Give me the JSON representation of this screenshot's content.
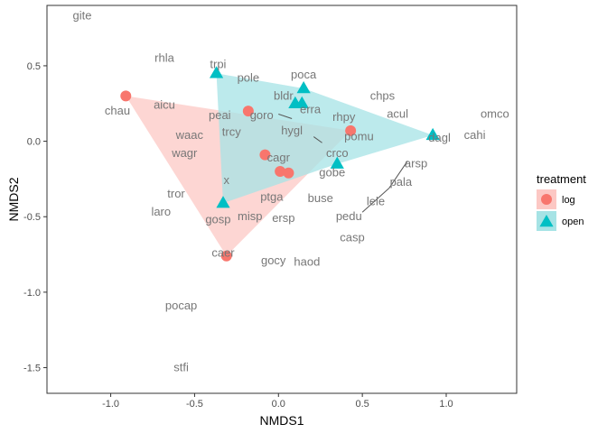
{
  "chart_data": {
    "type": "scatter",
    "xlabel": "NMDS1",
    "ylabel": "NMDS2",
    "xlim": [
      -1.38,
      1.42
    ],
    "ylim": [
      -1.67,
      0.9
    ],
    "x_ticks": [
      -1.0,
      -0.5,
      0.0,
      0.5,
      1.0
    ],
    "x_tick_labels": [
      "-1.0",
      "-0.5",
      "0.0",
      "0.5",
      "1.0"
    ],
    "y_ticks": [
      -1.5,
      -1.0,
      -0.5,
      0.0,
      0.5
    ],
    "y_tick_labels": [
      "-1.5",
      "-1.0",
      "-0.5",
      "0.0",
      "0.5"
    ],
    "grid": false,
    "legend": {
      "title": "treatment",
      "position": "right",
      "entries": [
        {
          "name": "log",
          "color": "#F8766D",
          "shape": "circle"
        },
        {
          "name": "open",
          "color": "#00BFC4",
          "shape": "triangle"
        }
      ]
    },
    "series": [
      {
        "name": "log",
        "color": "#F8766D",
        "fill": "#FCC8C4",
        "shape": "circle",
        "points": [
          {
            "x": -0.91,
            "y": 0.3
          },
          {
            "x": -0.18,
            "y": 0.2
          },
          {
            "x": 0.43,
            "y": 0.07
          },
          {
            "x": -0.08,
            "y": -0.09
          },
          {
            "x": 0.01,
            "y": -0.2
          },
          {
            "x": 0.06,
            "y": -0.21
          },
          {
            "x": -0.31,
            "y": -0.76
          }
        ],
        "hull": [
          {
            "x": -0.91,
            "y": 0.3
          },
          {
            "x": 0.43,
            "y": 0.07
          },
          {
            "x": -0.31,
            "y": -0.76
          }
        ]
      },
      {
        "name": "open",
        "color": "#00BFC4",
        "fill": "#A6E3E5",
        "shape": "triangle",
        "points": [
          {
            "x": -0.37,
            "y": 0.45
          },
          {
            "x": 0.15,
            "y": 0.35
          },
          {
            "x": 0.1,
            "y": 0.25
          },
          {
            "x": 0.14,
            "y": 0.25
          },
          {
            "x": 0.92,
            "y": 0.04
          },
          {
            "x": 0.35,
            "y": -0.15
          },
          {
            "x": -0.33,
            "y": -0.41
          }
        ],
        "hull": [
          {
            "x": -0.37,
            "y": 0.45
          },
          {
            "x": 0.15,
            "y": 0.35
          },
          {
            "x": 0.92,
            "y": 0.04
          },
          {
            "x": 0.35,
            "y": -0.15
          },
          {
            "x": -0.33,
            "y": -0.41
          }
        ]
      }
    ],
    "species_labels": [
      {
        "text": "gite",
        "x": -1.17,
        "y": 0.83
      },
      {
        "text": "rhla",
        "x": -0.68,
        "y": 0.55
      },
      {
        "text": "trpi",
        "x": -0.36,
        "y": 0.51
      },
      {
        "text": "pole",
        "x": -0.18,
        "y": 0.42
      },
      {
        "text": "poca",
        "x": 0.15,
        "y": 0.44
      },
      {
        "text": "bldr",
        "x": 0.03,
        "y": 0.3
      },
      {
        "text": "chps",
        "x": 0.62,
        "y": 0.3
      },
      {
        "text": "erra",
        "x": 0.19,
        "y": 0.21
      },
      {
        "text": "acul",
        "x": 0.71,
        "y": 0.18
      },
      {
        "text": "omco",
        "x": 1.29,
        "y": 0.18
      },
      {
        "text": "chau",
        "x": -0.96,
        "y": 0.2
      },
      {
        "text": "aicu",
        "x": -0.68,
        "y": 0.24
      },
      {
        "text": "peai",
        "x": -0.35,
        "y": 0.17
      },
      {
        "text": "goro",
        "x": -0.1,
        "y": 0.17
      },
      {
        "text": "rhpy",
        "x": 0.39,
        "y": 0.16
      },
      {
        "text": "waac",
        "x": -0.53,
        "y": 0.04
      },
      {
        "text": "trcy",
        "x": -0.28,
        "y": 0.06
      },
      {
        "text": "hygl",
        "x": 0.08,
        "y": 0.07
      },
      {
        "text": "pomu",
        "x": 0.48,
        "y": 0.03
      },
      {
        "text": "cahi",
        "x": 1.17,
        "y": 0.04
      },
      {
        "text": "dagl",
        "x": 0.96,
        "y": 0.02
      },
      {
        "text": "wagr",
        "x": -0.56,
        "y": -0.08
      },
      {
        "text": "cagr",
        "x": 0.0,
        "y": -0.11
      },
      {
        "text": "crco",
        "x": 0.35,
        "y": -0.08
      },
      {
        "text": "arsp",
        "x": 0.82,
        "y": -0.15
      },
      {
        "text": "gobe",
        "x": 0.32,
        "y": -0.21
      },
      {
        "text": "x",
        "x": -0.31,
        "y": -0.26
      },
      {
        "text": "pala",
        "x": 0.73,
        "y": -0.27
      },
      {
        "text": "tror",
        "x": -0.61,
        "y": -0.35
      },
      {
        "text": "ptga",
        "x": -0.04,
        "y": -0.37
      },
      {
        "text": "buse",
        "x": 0.25,
        "y": -0.38
      },
      {
        "text": "lele",
        "x": 0.58,
        "y": -0.4
      },
      {
        "text": "laro",
        "x": -0.7,
        "y": -0.47
      },
      {
        "text": "gosp",
        "x": -0.36,
        "y": -0.52
      },
      {
        "text": "misp",
        "x": -0.17,
        "y": -0.5
      },
      {
        "text": "ersp",
        "x": 0.03,
        "y": -0.51
      },
      {
        "text": "pedu",
        "x": 0.42,
        "y": -0.5
      },
      {
        "text": "casp",
        "x": 0.44,
        "y": -0.64
      },
      {
        "text": "caer",
        "x": -0.33,
        "y": -0.74
      },
      {
        "text": "gocy",
        "x": -0.03,
        "y": -0.79
      },
      {
        "text": "haod",
        "x": 0.17,
        "y": -0.8
      },
      {
        "text": "pocap",
        "x": -0.58,
        "y": -1.09
      },
      {
        "text": "stfi",
        "x": -0.58,
        "y": -1.5
      }
    ],
    "leader_lines": [
      {
        "x1": 0.0,
        "y1": 0.18,
        "x2": 0.08,
        "y2": 0.15
      },
      {
        "x1": 0.21,
        "y1": 0.03,
        "x2": 0.26,
        "y2": -0.01
      },
      {
        "x1": 0.5,
        "y1": -0.47,
        "x2": 0.66,
        "y2": -0.31
      },
      {
        "x1": 0.66,
        "y1": -0.31,
        "x2": 0.77,
        "y2": -0.13
      }
    ]
  }
}
